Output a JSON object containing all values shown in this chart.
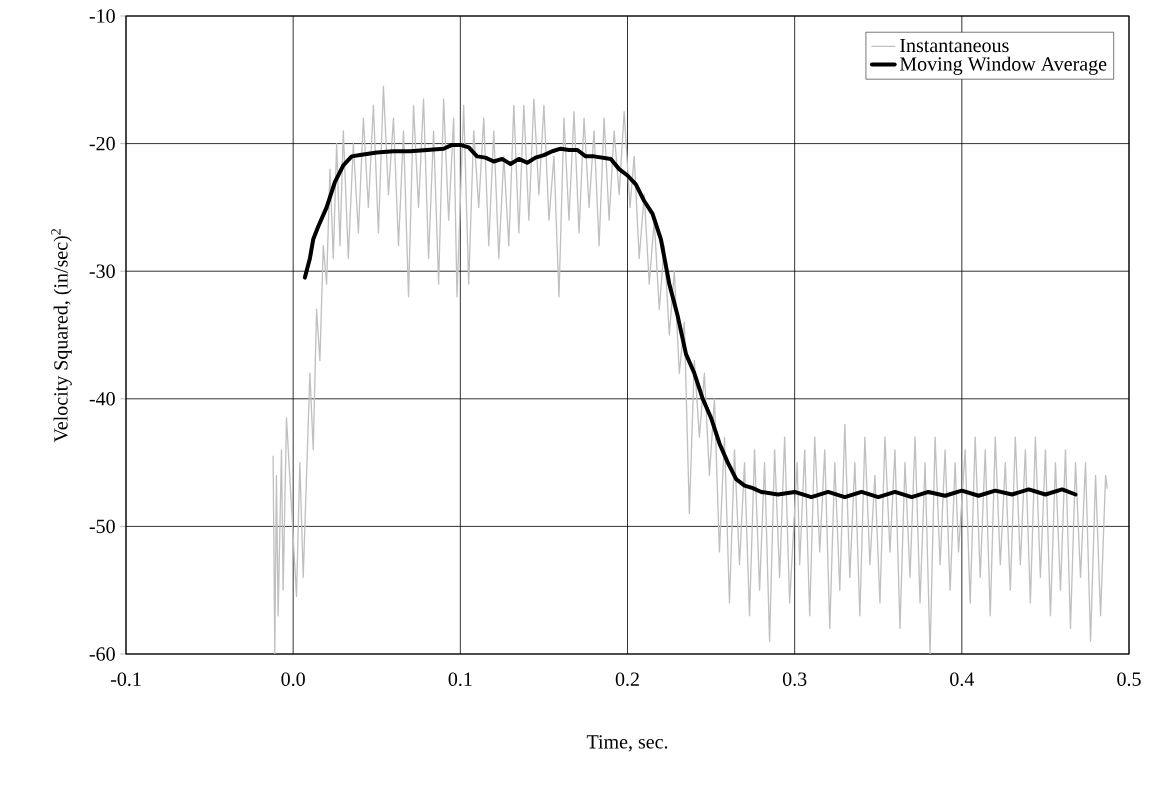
{
  "chart_data": {
    "type": "line",
    "xlabel": "Time, sec.",
    "ylabel": "Velocity Squared, (in/sec)$^{2}$",
    "xlim": [
      -0.1,
      0.5
    ],
    "ylim": [
      -60,
      -10
    ],
    "xticks": [
      -0.1,
      {
        "value": 0,
        "label": "0.0"
      },
      0.1,
      0.2,
      0.3,
      0.4,
      0.5
    ],
    "yticks": [
      -60,
      -50,
      -40,
      -30,
      -20,
      -10
    ],
    "grid": true,
    "legend": "top right",
    "series": [
      {
        "name": "Instantaneous",
        "color": "#c0c0c0",
        "x": [
          -0.012,
          -0.011,
          -0.01,
          -0.009,
          -0.007,
          -0.006,
          -0.004,
          0.002,
          0.004,
          0.006,
          0.008,
          0.01,
          0.012,
          0.014,
          0.016,
          0.018,
          0.02,
          0.022,
          0.024,
          0.026,
          0.028,
          0.03,
          0.033,
          0.036,
          0.039,
          0.042,
          0.045,
          0.048,
          0.051,
          0.054,
          0.057,
          0.06,
          0.063,
          0.066,
          0.069,
          0.072,
          0.075,
          0.078,
          0.081,
          0.084,
          0.087,
          0.09,
          0.093,
          0.096,
          0.098,
          0.102,
          0.105,
          0.108,
          0.111,
          0.114,
          0.117,
          0.12,
          0.123,
          0.126,
          0.129,
          0.132,
          0.135,
          0.138,
          0.141,
          0.144,
          0.147,
          0.15,
          0.153,
          0.156,
          0.159,
          0.162,
          0.165,
          0.168,
          0.171,
          0.174,
          0.177,
          0.18,
          0.183,
          0.186,
          0.189,
          0.192,
          0.195,
          0.198,
          0.2015,
          0.204,
          0.207,
          0.21,
          0.213,
          0.216,
          0.219,
          0.222,
          0.225,
          0.228,
          0.231,
          0.234,
          0.237,
          0.24,
          0.243,
          0.246,
          0.249,
          0.252,
          0.255,
          0.258,
          0.261,
          0.264,
          0.267,
          0.27,
          0.273,
          0.276,
          0.279,
          0.282,
          0.285,
          0.288,
          0.291,
          0.294,
          0.297,
          0.3015,
          0.303,
          0.306,
          0.309,
          0.312,
          0.315,
          0.318,
          0.321,
          0.324,
          0.327,
          0.33,
          0.333,
          0.336,
          0.339,
          0.342,
          0.345,
          0.348,
          0.351,
          0.354,
          0.357,
          0.36,
          0.363,
          0.366,
          0.369,
          0.372,
          0.375,
          0.378,
          0.381,
          0.384,
          0.387,
          0.39,
          0.393,
          0.396,
          0.398,
          0.402,
          0.405,
          0.408,
          0.411,
          0.414,
          0.417,
          0.42,
          0.423,
          0.426,
          0.429,
          0.432,
          0.435,
          0.438,
          0.441,
          0.444,
          0.447,
          0.45,
          0.453,
          0.456,
          0.459,
          0.462,
          0.465,
          0.468,
          0.471,
          0.474,
          0.477,
          0.48,
          0.483,
          0.486,
          0.487
        ],
        "values": [
          -44.5,
          -60,
          -46,
          -57,
          -44,
          -55,
          -41.5,
          -55.5,
          -45,
          -54,
          -46,
          -38,
          -44,
          -33,
          -37,
          -28,
          -31,
          -22,
          -29,
          -20,
          -28,
          -19,
          -29,
          -20,
          -27,
          -18,
          -25,
          -17,
          -27,
          -15.5,
          -24,
          -18,
          -28,
          -19,
          -32,
          -17,
          -25,
          -16.5,
          -29,
          -19,
          -31,
          -16.5,
          -26,
          -18,
          -32,
          -17,
          -31,
          -19,
          -25,
          -18,
          -28,
          -19,
          -29,
          -21,
          -28,
          -17,
          -27,
          -17,
          -26,
          -16.5,
          -24,
          -17,
          -26,
          -21,
          -32,
          -18,
          -26,
          -17.5,
          -27,
          -18,
          -25,
          -19,
          -28,
          -18,
          -26,
          -19,
          -24,
          -17.5,
          -25,
          -21,
          -29,
          -24,
          -31,
          -26,
          -33,
          -28,
          -35,
          -30,
          -38,
          -34,
          -49,
          -37,
          -43,
          -38,
          -46,
          -40,
          -52,
          -43,
          -56,
          -44,
          -53,
          -45,
          -57,
          -44,
          -55,
          -45,
          -59,
          -44,
          -54,
          -43,
          -56,
          -45,
          -53,
          -44,
          -57,
          -43,
          -52,
          -44,
          -58,
          -45,
          -55,
          -42,
          -54,
          -45,
          -57,
          -43,
          -53,
          -46,
          -56,
          -43,
          -52,
          -44,
          -58,
          -45,
          -54,
          -43,
          -56,
          -45,
          -60,
          -43,
          -53,
          -44,
          -55,
          -45,
          -52,
          -44,
          -56,
          -43,
          -54,
          -44,
          -57,
          -43,
          -53,
          -45,
          -55,
          -43,
          -53,
          -44,
          -56,
          -43,
          -54,
          -44,
          -57,
          -45,
          -55,
          -44,
          -58,
          -45,
          -54,
          -45,
          -59,
          -46,
          -57,
          -46,
          -47
        ]
      },
      {
        "name": "Moving Window Average",
        "color": "#000000",
        "x": [
          0.007,
          0.01,
          0.012,
          0.015,
          0.02,
          0.025,
          0.03,
          0.035,
          0.04,
          0.05,
          0.06,
          0.07,
          0.08,
          0.09,
          0.095,
          0.1,
          0.105,
          0.11,
          0.115,
          0.12,
          0.125,
          0.13,
          0.135,
          0.14,
          0.145,
          0.15,
          0.155,
          0.16,
          0.165,
          0.17,
          0.175,
          0.18,
          0.19,
          0.195,
          0.2,
          0.205,
          0.21,
          0.215,
          0.22,
          0.225,
          0.23,
          0.235,
          0.24,
          0.245,
          0.25,
          0.255,
          0.26,
          0.265,
          0.27,
          0.275,
          0.28,
          0.29,
          0.3,
          0.31,
          0.32,
          0.33,
          0.34,
          0.35,
          0.36,
          0.37,
          0.38,
          0.39,
          0.4,
          0.41,
          0.42,
          0.43,
          0.44,
          0.45,
          0.46,
          0.468
        ],
        "values": [
          -30.5,
          -29,
          -27.5,
          -26.5,
          -25,
          -23,
          -21.7,
          -21,
          -20.9,
          -20.7,
          -20.6,
          -20.6,
          -20.5,
          -20.4,
          -20.1,
          -20.1,
          -20.3,
          -21,
          -21.1,
          -21.4,
          -21.2,
          -21.6,
          -21.2,
          -21.5,
          -21.1,
          -20.9,
          -20.6,
          -20.4,
          -20.5,
          -20.5,
          -21,
          -21,
          -21.2,
          -22,
          -22.5,
          -23.2,
          -24.5,
          -25.5,
          -27.5,
          -31,
          -33.5,
          -36.5,
          -38,
          -40,
          -41.5,
          -43.5,
          -45,
          -46.3,
          -46.8,
          -47,
          -47.3,
          -47.5,
          -47.3,
          -47.7,
          -47.3,
          -47.7,
          -47.3,
          -47.7,
          -47.3,
          -47.7,
          -47.3,
          -47.6,
          -47.2,
          -47.6,
          -47.2,
          -47.5,
          -47.1,
          -47.5,
          -47.1,
          -47.5
        ]
      }
    ]
  }
}
